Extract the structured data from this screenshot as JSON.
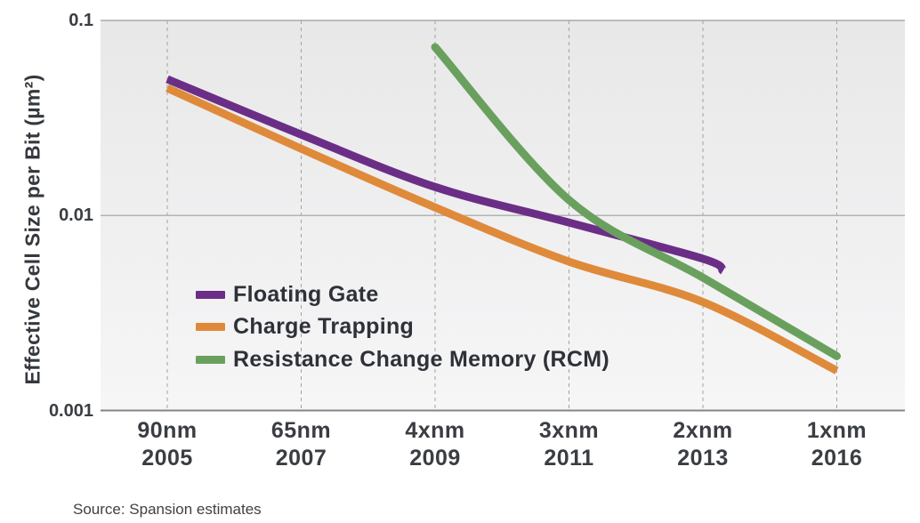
{
  "chart_data": {
    "type": "line",
    "title": "",
    "ylabel": "Effective Cell Size per Bit (µm²)",
    "xlabel": "",
    "y_scale": "log",
    "ylim": [
      0.001,
      0.1
    ],
    "y_ticks": [
      {
        "label": "0.1",
        "value": 0.1
      },
      {
        "label": "0.01",
        "value": 0.01
      },
      {
        "label": "0.001",
        "value": 0.001
      }
    ],
    "categories": [
      {
        "node": "90nm",
        "year": "2005"
      },
      {
        "node": "65nm",
        "year": "2007"
      },
      {
        "node": "4xnm",
        "year": "2009"
      },
      {
        "node": "3xnm",
        "year": "2011"
      },
      {
        "node": "2xnm",
        "year": "2013"
      },
      {
        "node": "1xnm",
        "year": "2016"
      }
    ],
    "grid": {
      "vertical": "dashed",
      "horizontal": "solid-decades"
    },
    "legend_position": "inside-lower-left",
    "series": [
      {
        "name": "Floating Gate",
        "color": "#6B2E86",
        "linecap": "butt",
        "points": [
          [
            0,
            0.05
          ],
          [
            1,
            0.026
          ],
          [
            2,
            0.014
          ],
          [
            3,
            0.0092
          ],
          [
            4,
            0.006
          ],
          [
            4.15,
            0.0052
          ]
        ]
      },
      {
        "name": "Charge Trapping",
        "color": "#DF8A3A",
        "linecap": "butt",
        "points": [
          [
            0,
            0.045
          ],
          [
            1,
            0.022
          ],
          [
            2,
            0.011
          ],
          [
            3,
            0.0058
          ],
          [
            4,
            0.0036
          ],
          [
            5,
            0.0016
          ]
        ]
      },
      {
        "name": "Resistance Change Memory (RCM)",
        "color": "#6AA05E",
        "linecap": "round",
        "points": [
          [
            2,
            0.073
          ],
          [
            3,
            0.012
          ],
          [
            4,
            0.0048
          ],
          [
            5,
            0.0019
          ]
        ]
      }
    ]
  },
  "source": {
    "label": "Source: Spansion estimates"
  },
  "colors": {
    "plot_bg_top": "#E8E8E9",
    "plot_bg_bottom": "#F6F6F7",
    "grid_dash": "#A2A2A2",
    "grid_top_line": "#A9A9A9",
    "grid_mid_line": "#B4B4B4",
    "axis_bottom_line": "#858585",
    "label_text": "#3A3D42"
  }
}
